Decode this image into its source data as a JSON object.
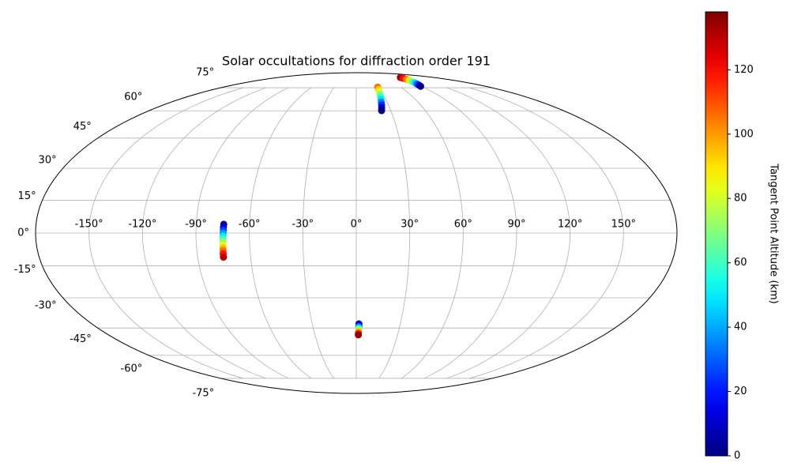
{
  "chart_data": {
    "type": "scatter",
    "projection": "mollweide",
    "title": "Solar occultations for diffraction order 191",
    "x": [
      -74.5,
      -74.6,
      -74.6,
      -74.7,
      -74.8,
      -74.9,
      -74.9,
      -75,
      -75.1,
      -75.2,
      -75.3,
      -75.4,
      1.8,
      1.8,
      1.7,
      1.7,
      1.6,
      1.6,
      1.5,
      1.5,
      29,
      28.2,
      27.4,
      26.7,
      25.9,
      25.1,
      24.3,
      23.6,
      22.8,
      22,
      101.6,
      100.3,
      98.9,
      97.6,
      96.3,
      94.9,
      93.6,
      92.3,
      90.9,
      89.6
    ],
    "y": [
      4,
      2.6,
      1.3,
      0,
      -1.4,
      -2.7,
      -4,
      -5.4,
      -6.7,
      -8,
      -9.4,
      -11,
      -42.9,
      -43.7,
      -44.5,
      -45.3,
      -46.1,
      -46.9,
      -47.8,
      -48.6,
      75.5,
      73.8,
      72.1,
      70.4,
      68.7,
      66.9,
      65.2,
      63.5,
      61.8,
      60.1,
      83.6,
      82.8,
      81.9,
      81.1,
      80.3,
      79.4,
      78.6,
      77.8,
      76.9,
      76.1
    ],
    "c": [
      2,
      14,
      26,
      38,
      50,
      61,
      72,
      84,
      95,
      106,
      118,
      130,
      2,
      21,
      40,
      59,
      78,
      97,
      116,
      135,
      105,
      93,
      82,
      70,
      58,
      47,
      35,
      23,
      12,
      0,
      135,
      120,
      105,
      90,
      75,
      60,
      45,
      30,
      15,
      0
    ],
    "colormap": "jet",
    "clim": [
      0,
      138
    ],
    "cticks": [
      0,
      20,
      40,
      60,
      80,
      100,
      120
    ],
    "colorbar_label": "Tangent Point Altitude (km)",
    "xlim": [
      -180,
      180
    ],
    "ylim": [
      -90,
      90
    ],
    "xticks": [
      {
        "value": -150,
        "label": "-150°"
      },
      {
        "value": -120,
        "label": "-120°"
      },
      {
        "value": -90,
        "label": "-90°"
      },
      {
        "value": -60,
        "label": "-60°"
      },
      {
        "value": -30,
        "label": "-30°"
      },
      {
        "value": 0,
        "label": "0°"
      },
      {
        "value": 30,
        "label": "30°"
      },
      {
        "value": 60,
        "label": "60°"
      },
      {
        "value": 90,
        "label": "90°"
      },
      {
        "value": 120,
        "label": "120°"
      },
      {
        "value": 150,
        "label": "150°"
      }
    ],
    "yticks": [
      {
        "value": -75,
        "label": "-75°"
      },
      {
        "value": -60,
        "label": "-60°"
      },
      {
        "value": -45,
        "label": "-45°"
      },
      {
        "value": -30,
        "label": "-30°"
      },
      {
        "value": -15,
        "label": "-15°"
      },
      {
        "value": 0,
        "label": "0°"
      },
      {
        "value": 15,
        "label": "15°"
      },
      {
        "value": 30,
        "label": "30°"
      },
      {
        "value": 45,
        "label": "45°"
      },
      {
        "value": 60,
        "label": "60°"
      },
      {
        "value": 75,
        "label": "75°"
      }
    ],
    "grid": true
  }
}
